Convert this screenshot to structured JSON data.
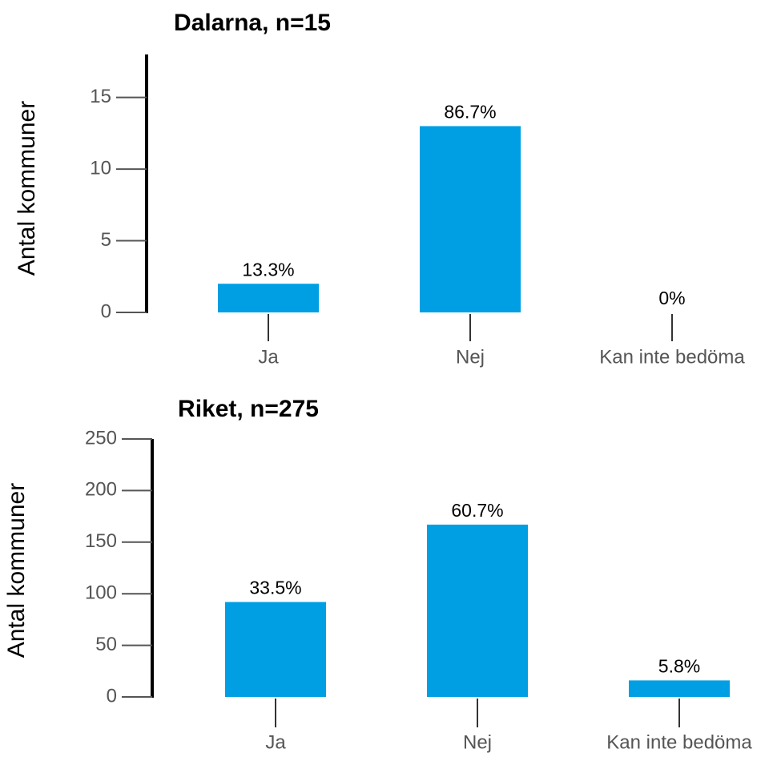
{
  "chart_data": [
    {
      "type": "bar",
      "title": "Dalarna, n=15",
      "y_label": "Antal kommuner",
      "categories": [
        "Ja",
        "Nej",
        "Kan inte bedöma"
      ],
      "values": [
        2,
        13,
        0
      ],
      "percent_labels": [
        "13.3%",
        "86.7%",
        "0%"
      ],
      "color": "#009fe3",
      "ylim": [
        0,
        18
      ],
      "yticks": [
        0,
        5,
        10,
        15
      ]
    },
    {
      "type": "bar",
      "title": "Riket, n=275",
      "y_label": "Antal kommuner",
      "categories": [
        "Ja",
        "Nej",
        "Kan inte bedöma"
      ],
      "values": [
        92,
        167,
        16
      ],
      "percent_labels": [
        "33.5%",
        "60.7%",
        "5.8%"
      ],
      "color": "#009fe3",
      "ylim": [
        0,
        250
      ],
      "yticks": [
        0,
        50,
        100,
        150,
        200,
        250
      ]
    }
  ]
}
